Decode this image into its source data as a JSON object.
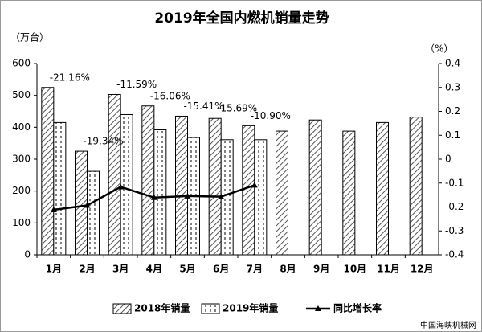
{
  "chart_data": {
    "type": "bar",
    "title": "2019年全国内燃机销量走势",
    "y_label": "（万台）",
    "y2_label": "（%）",
    "source": "中国海峡机械网",
    "categories": [
      "1月",
      "2月",
      "3月",
      "4月",
      "5月",
      "6月",
      "7月",
      "8月",
      "9月",
      "10月",
      "11月",
      "12月"
    ],
    "series": [
      {
        "name": "2018年销量",
        "color": "#000000",
        "values": [
          525,
          325,
          503,
          467,
          435,
          428,
          405,
          388,
          423,
          388,
          415,
          432
        ]
      },
      {
        "name": "2019年销量",
        "color": "#000000",
        "values": [
          415,
          262,
          440,
          392,
          368,
          361,
          361,
          null,
          null,
          null,
          null,
          null
        ]
      },
      {
        "name": "同比增长率",
        "type": "line",
        "axis": "y2",
        "color": "#000000",
        "values": [
          -0.2116,
          -0.1934,
          -0.1159,
          -0.1606,
          -0.1541,
          -0.1569,
          -0.109,
          null,
          null,
          null,
          null,
          null
        ],
        "value_labels": [
          "-21.16%",
          "-19.34%",
          "-11.59%",
          "-16.06%",
          "-15.41%",
          "-15.69%",
          "-10.90%",
          null,
          null,
          null,
          null,
          null
        ]
      }
    ],
    "ylim": [
      0,
      600
    ],
    "yticks": [
      0,
      100,
      200,
      300,
      400,
      500,
      600
    ],
    "y2lim": [
      -0.4,
      0.4
    ],
    "y2ticks": [
      -0.4,
      -0.3,
      -0.2,
      -0.1,
      0,
      0.1,
      0.2,
      0.3,
      0.4
    ]
  }
}
